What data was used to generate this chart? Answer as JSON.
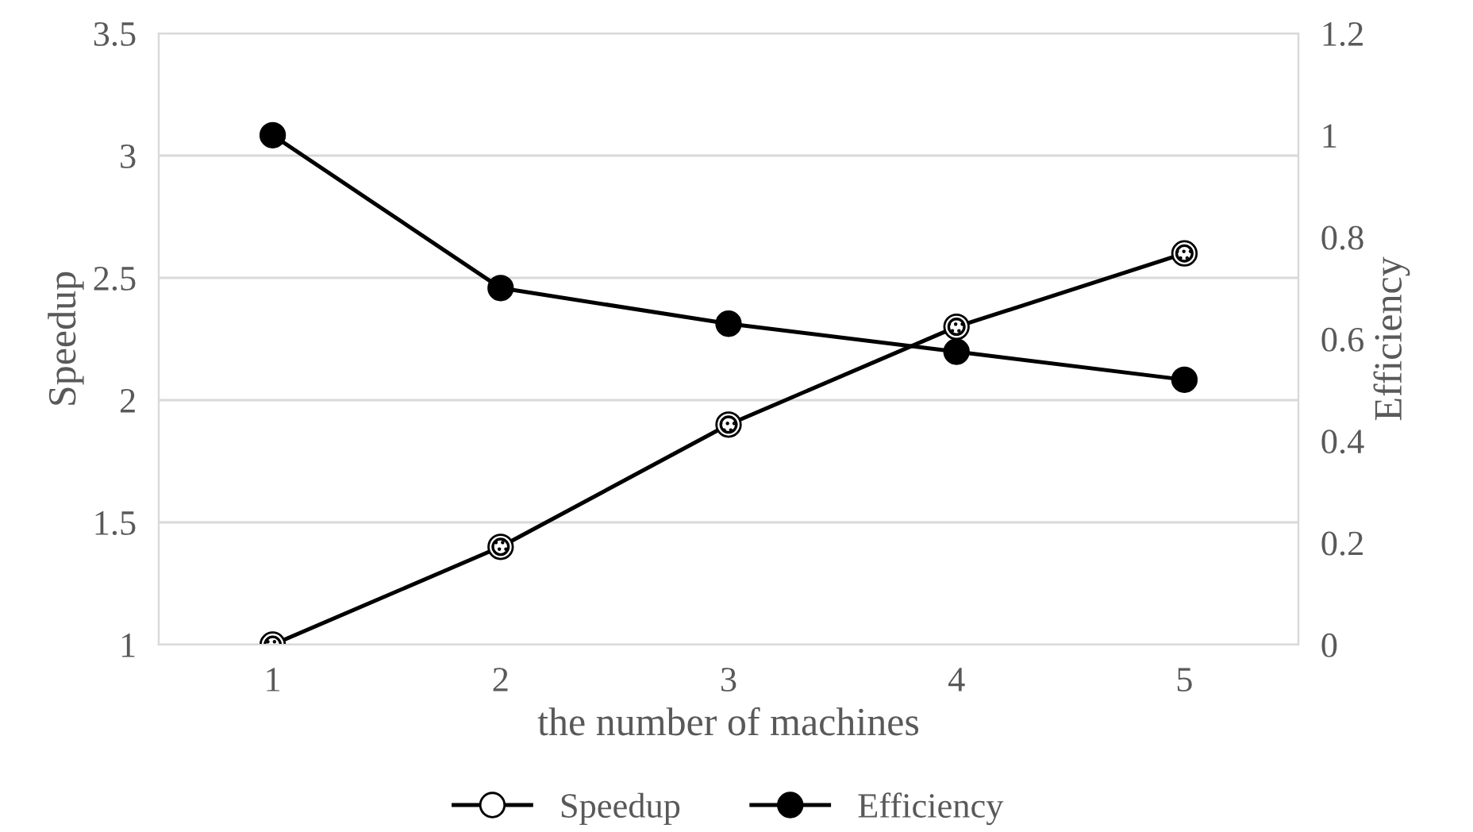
{
  "chart_data": {
    "type": "line",
    "categories": [
      "1",
      "2",
      "3",
      "4",
      "5"
    ],
    "xlabel": "the number of machines",
    "ylabel": "Speedup",
    "y2label": "Efficiency",
    "series": [
      {
        "name": "Speedup",
        "color": "#000000",
        "values": [
          1,
          1.4,
          1.9,
          2.3,
          2.6
        ]
      },
      {
        "name": "Efficiency",
        "color": "#000000",
        "axis": "y2",
        "values": [
          1,
          0.7,
          0.63,
          0.575,
          0.52
        ]
      }
    ],
    "ylim": [
      1,
      3.5
    ],
    "yticks": [
      1,
      1.5,
      2,
      2.5,
      3,
      3.5
    ],
    "y2lim": [
      0,
      1.2
    ],
    "y2ticks": [
      0,
      0.2,
      0.4,
      0.6,
      0.8,
      1,
      1.2
    ],
    "grid": "y",
    "legend": "bottom",
    "marker": "circle",
    "line_style": "solid"
  }
}
